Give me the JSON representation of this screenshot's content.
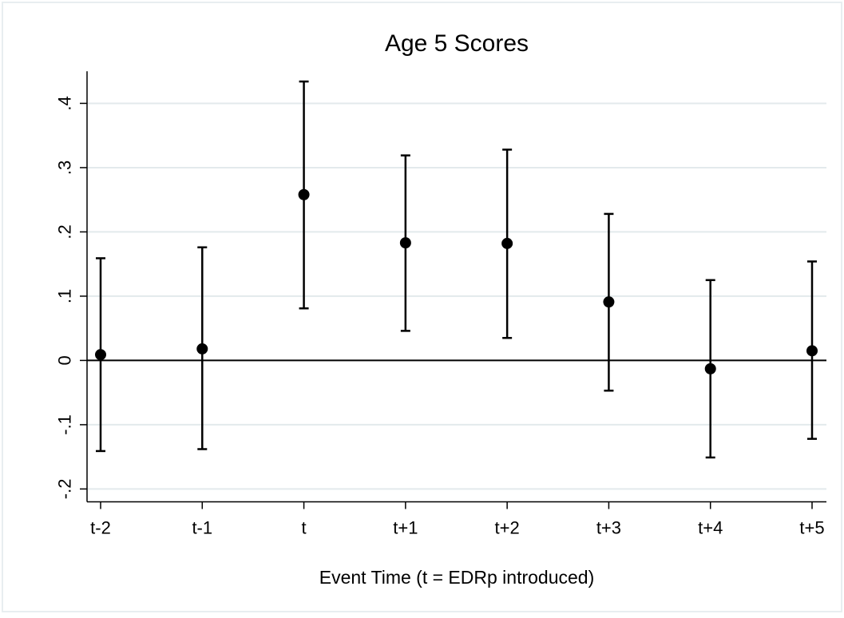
{
  "chart_data": {
    "type": "scatter",
    "title": "Age 5 Scores",
    "xlabel": "Event Time (t = EDRp introduced)",
    "ylabel": "",
    "categories": [
      "t-2",
      "t-1",
      "t",
      "t+1",
      "t+2",
      "t+3",
      "t+4",
      "t+5"
    ],
    "series": [
      {
        "values": [
          0.009,
          0.018,
          0.258,
          0.183,
          0.182,
          0.091,
          -0.013,
          0.015
        ],
        "ci_lower": [
          -0.141,
          -0.138,
          0.081,
          0.046,
          0.035,
          -0.047,
          -0.151,
          -0.122
        ],
        "ci_upper": [
          0.159,
          0.176,
          0.434,
          0.319,
          0.328,
          0.228,
          0.125,
          0.154
        ]
      }
    ],
    "yticks": [
      -0.2,
      -0.1,
      0,
      0.1,
      0.2,
      0.3,
      0.4
    ],
    "ytick_labels": [
      "-.2",
      "-.1",
      "0",
      ".1",
      ".2",
      ".3",
      ".4"
    ],
    "ylim": [
      -0.22,
      0.45
    ],
    "reference_line_y": 0,
    "grid": "horizontal",
    "colors": {
      "background": "#ffffff",
      "plot_background": "#ffffff",
      "frame": "#e8eef0",
      "grid": "#e3eaec",
      "marks": "#000000"
    }
  }
}
